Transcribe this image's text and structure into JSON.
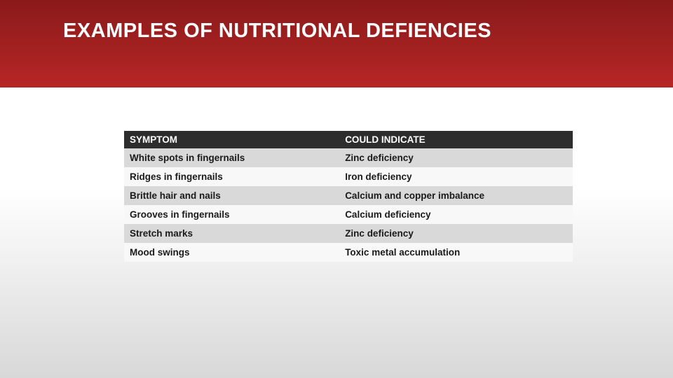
{
  "header": {
    "title": "EXAMPLES OF NUTRITIONAL DEFIENCIES",
    "band_gradient_top": "#8a1a1a",
    "band_gradient_bottom": "#b72626",
    "title_color": "#ffffff",
    "title_fontsize": 29
  },
  "table": {
    "header_bg": "#2d2d2d",
    "header_text_color": "#ffffff",
    "row_odd_bg": "#d9d9d9",
    "row_even_bg": "#f8f8f8",
    "cell_text_color": "#1a1a1a",
    "cell_fontsize": 13.5,
    "col_left_width_pct": 48,
    "col_right_width_pct": 52,
    "columns": [
      "SYMPTOM",
      "COULD INDICATE"
    ],
    "rows": [
      [
        "White spots in fingernails",
        "Zinc deficiency"
      ],
      [
        "Ridges in fingernails",
        "Iron deficiency"
      ],
      [
        "Brittle hair and nails",
        "Calcium and copper imbalance"
      ],
      [
        "Grooves in fingernails",
        "Calcium deficiency"
      ],
      [
        "Stretch marks",
        "Zinc deficiency"
      ],
      [
        "Mood swings",
        "Toxic metal accumulation"
      ]
    ]
  },
  "background": {
    "gradient_top": "#ffffff",
    "gradient_bottom": "#d8d8d8"
  }
}
